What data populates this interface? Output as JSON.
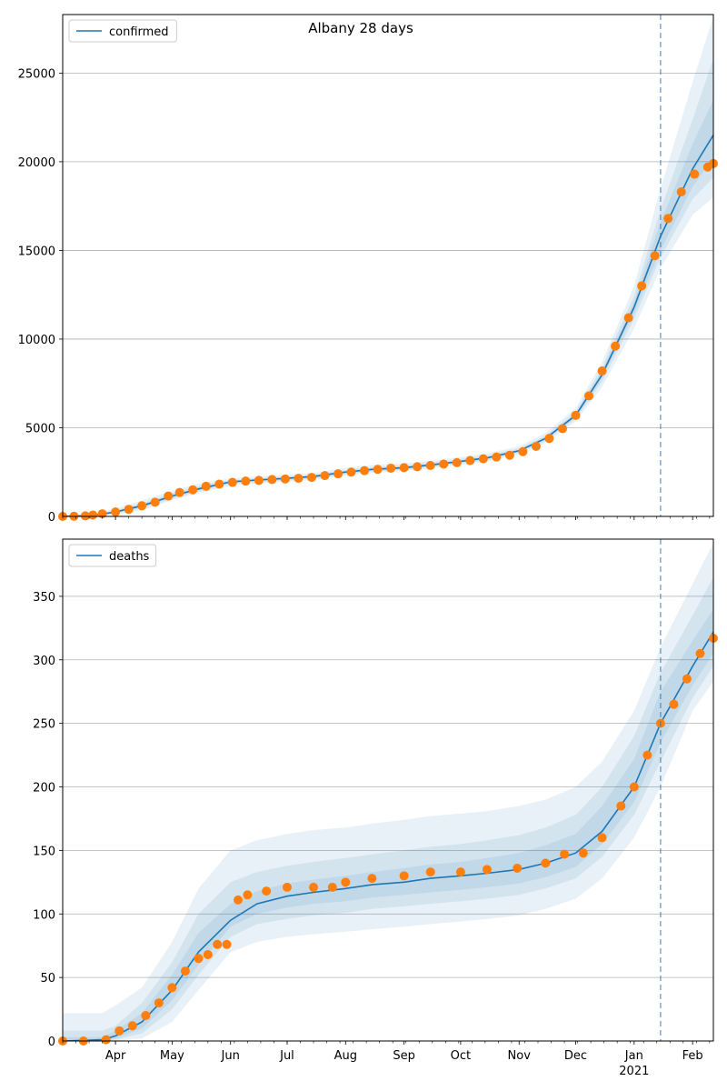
{
  "title": "Albany 28 days",
  "colors": {
    "model_line": "#1f77b4",
    "observed_points": "#ff7f0e",
    "band": "#1f77b4",
    "grid": "#b0b0b0",
    "vline": "#1f77b4"
  },
  "x_axis": {
    "month_labels": [
      {
        "label": "Apr",
        "date": "2020-04-01"
      },
      {
        "label": "May",
        "date": "2020-05-01"
      },
      {
        "label": "Jun",
        "date": "2020-06-01"
      },
      {
        "label": "Jul",
        "date": "2020-07-01"
      },
      {
        "label": "Aug",
        "date": "2020-08-01"
      },
      {
        "label": "Sep",
        "date": "2020-09-01"
      },
      {
        "label": "Oct",
        "date": "2020-10-01"
      },
      {
        "label": "Nov",
        "date": "2020-11-01"
      },
      {
        "label": "Dec",
        "date": "2020-12-01"
      },
      {
        "label": "Jan",
        "date": "2021-01-01"
      },
      {
        "label": "Feb",
        "date": "2021-02-01"
      }
    ],
    "year_label": "2021",
    "range": [
      "2020-03-04",
      "2021-02-12"
    ]
  },
  "chart_data": [
    {
      "type": "line",
      "legend": "confirmed",
      "legend_position": "upper-left",
      "grid": "horizontal",
      "ylim": [
        0,
        28300
      ],
      "yticks": [
        0,
        5000,
        10000,
        15000,
        20000,
        25000
      ],
      "forecast_start": "2021-01-15",
      "x_unit": "date",
      "model_curve": {
        "x": [
          "2020-03-04",
          "2020-03-20",
          "2020-04-01",
          "2020-04-15",
          "2020-05-01",
          "2020-05-15",
          "2020-06-01",
          "2020-06-15",
          "2020-07-01",
          "2020-07-15",
          "2020-08-01",
          "2020-08-15",
          "2020-09-01",
          "2020-09-15",
          "2020-10-01",
          "2020-10-15",
          "2020-11-01",
          "2020-11-15",
          "2020-12-01",
          "2020-12-15",
          "2021-01-01",
          "2021-01-15",
          "2021-02-01",
          "2021-02-12"
        ],
        "y": [
          0,
          50,
          250,
          600,
          1150,
          1550,
          1950,
          2050,
          2150,
          2250,
          2500,
          2650,
          2750,
          2900,
          3100,
          3300,
          3700,
          4400,
          5700,
          8000,
          11800,
          15800,
          19600,
          21500
        ]
      },
      "bands": [
        {
          "level": "outer",
          "upper": [
            50,
            150,
            450,
            900,
            1450,
            1850,
            2150,
            2250,
            2350,
            2450,
            2750,
            2900,
            3000,
            3150,
            3350,
            3550,
            3950,
            4700,
            6100,
            8700,
            13000,
            18500,
            24500,
            28200
          ],
          "lower": [
            0,
            0,
            100,
            350,
            900,
            1300,
            1750,
            1850,
            1950,
            2050,
            2300,
            2450,
            2550,
            2700,
            2900,
            3100,
            3500,
            4150,
            5350,
            7300,
            10600,
            14000,
            17000,
            18000
          ]
        },
        {
          "level": "middle",
          "upper": [
            30,
            100,
            350,
            750,
            1300,
            1700,
            2050,
            2150,
            2250,
            2350,
            2620,
            2780,
            2880,
            3030,
            3230,
            3430,
            3830,
            4560,
            5900,
            8400,
            12450,
            17300,
            22400,
            25800
          ],
          "lower": [
            0,
            20,
            170,
            450,
            1000,
            1400,
            1830,
            1930,
            2030,
            2130,
            2380,
            2530,
            2630,
            2780,
            2980,
            3180,
            3580,
            4250,
            5500,
            7600,
            11150,
            14600,
            17900,
            19100
          ]
        },
        {
          "level": "inner",
          "upper": [
            15,
            70,
            300,
            680,
            1230,
            1630,
            2000,
            2100,
            2200,
            2300,
            2560,
            2710,
            2810,
            2960,
            3160,
            3360,
            3760,
            4480,
            5800,
            8200,
            12100,
            16600,
            21000,
            23500
          ],
          "lower": [
            0,
            35,
            210,
            520,
            1070,
            1470,
            1890,
            1990,
            2090,
            2190,
            2440,
            2590,
            2690,
            2840,
            3040,
            3240,
            3640,
            4320,
            5600,
            7800,
            11500,
            15000,
            18600,
            20200
          ]
        }
      ],
      "observed": {
        "x": [
          "2020-03-04",
          "2020-03-10",
          "2020-03-16",
          "2020-03-20",
          "2020-03-25",
          "2020-04-01",
          "2020-04-08",
          "2020-04-15",
          "2020-04-22",
          "2020-04-29",
          "2020-05-05",
          "2020-05-12",
          "2020-05-19",
          "2020-05-26",
          "2020-06-02",
          "2020-06-09",
          "2020-06-16",
          "2020-06-23",
          "2020-06-30",
          "2020-07-07",
          "2020-07-14",
          "2020-07-21",
          "2020-07-28",
          "2020-08-04",
          "2020-08-11",
          "2020-08-18",
          "2020-08-25",
          "2020-09-01",
          "2020-09-08",
          "2020-09-15",
          "2020-09-22",
          "2020-09-29",
          "2020-10-06",
          "2020-10-13",
          "2020-10-20",
          "2020-10-27",
          "2020-11-03",
          "2020-11-10",
          "2020-11-17",
          "2020-11-24",
          "2020-12-01",
          "2020-12-08",
          "2020-12-15",
          "2020-12-22",
          "2020-12-29",
          "2021-01-05",
          "2021-01-12",
          "2021-01-19",
          "2021-01-26",
          "2021-02-02",
          "2021-02-09",
          "2021-02-12"
        ],
        "y": [
          0,
          10,
          30,
          80,
          150,
          250,
          400,
          600,
          800,
          1150,
          1350,
          1500,
          1700,
          1820,
          1920,
          1990,
          2030,
          2080,
          2110,
          2150,
          2200,
          2300,
          2400,
          2500,
          2580,
          2650,
          2720,
          2750,
          2800,
          2870,
          2950,
          3030,
          3150,
          3250,
          3350,
          3450,
          3650,
          3950,
          4400,
          4950,
          5700,
          6800,
          8200,
          9600,
          11200,
          13000,
          14700,
          16800,
          18300,
          19300,
          19700,
          19900
        ]
      }
    },
    {
      "type": "line",
      "legend": "deaths",
      "legend_position": "upper-left",
      "grid": "horizontal",
      "ylim": [
        0,
        395
      ],
      "yticks": [
        0,
        50,
        100,
        150,
        200,
        250,
        300,
        350
      ],
      "forecast_start": "2021-01-15",
      "x_unit": "date",
      "model_curve": {
        "x": [
          "2020-03-04",
          "2020-03-25",
          "2020-04-01",
          "2020-04-15",
          "2020-05-01",
          "2020-05-15",
          "2020-06-01",
          "2020-06-15",
          "2020-07-01",
          "2020-07-15",
          "2020-08-01",
          "2020-08-15",
          "2020-09-01",
          "2020-09-15",
          "2020-10-01",
          "2020-10-15",
          "2020-11-01",
          "2020-11-15",
          "2020-12-01",
          "2020-12-15",
          "2021-01-01",
          "2021-01-15",
          "2021-02-01",
          "2021-02-12"
        ],
        "y": [
          0,
          1,
          4,
          15,
          40,
          70,
          95,
          108,
          114,
          117,
          120,
          123,
          125,
          128,
          130,
          132,
          135,
          140,
          148,
          165,
          200,
          250,
          295,
          322
        ]
      },
      "bands": [
        {
          "level": "outer",
          "upper": [
            22,
            22,
            28,
            42,
            78,
            120,
            150,
            158,
            163,
            166,
            168,
            171,
            174,
            177,
            179,
            181,
            185,
            190,
            200,
            220,
            260,
            310,
            360,
            392
          ],
          "lower": [
            0,
            0,
            0,
            2,
            15,
            40,
            70,
            78,
            82,
            84,
            86,
            88,
            90,
            92,
            94,
            96,
            99,
            104,
            112,
            128,
            160,
            200,
            260,
            283
          ]
        },
        {
          "level": "middle",
          "upper": [
            8,
            8,
            12,
            30,
            62,
            100,
            125,
            133,
            138,
            141,
            144,
            147,
            150,
            153,
            155,
            158,
            162,
            168,
            178,
            200,
            240,
            290,
            335,
            365
          ],
          "lower": [
            0,
            0,
            1,
            6,
            25,
            52,
            82,
            92,
            96,
            99,
            101,
            104,
            106,
            108,
            110,
            112,
            115,
            120,
            128,
            145,
            178,
            220,
            270,
            295
          ]
        },
        {
          "level": "inner",
          "upper": [
            3,
            3,
            8,
            22,
            52,
            85,
            108,
            118,
            124,
            127,
            130,
            133,
            136,
            139,
            141,
            144,
            148,
            154,
            163,
            185,
            222,
            275,
            315,
            340
          ],
          "lower": [
            0,
            0,
            2,
            10,
            32,
            60,
            90,
            100,
            105,
            108,
            110,
            113,
            115,
            117,
            119,
            121,
            124,
            129,
            137,
            155,
            188,
            235,
            280,
            305
          ]
        }
      ],
      "observed": {
        "x": [
          "2020-03-04",
          "2020-03-15",
          "2020-03-27",
          "2020-04-03",
          "2020-04-10",
          "2020-04-17",
          "2020-04-24",
          "2020-05-01",
          "2020-05-08",
          "2020-05-15",
          "2020-05-20",
          "2020-05-25",
          "2020-05-30",
          "2020-06-05",
          "2020-06-10",
          "2020-06-20",
          "2020-07-01",
          "2020-07-15",
          "2020-07-25",
          "2020-08-01",
          "2020-08-15",
          "2020-09-01",
          "2020-09-15",
          "2020-10-01",
          "2020-10-15",
          "2020-10-31",
          "2020-11-15",
          "2020-11-25",
          "2020-12-05",
          "2020-12-15",
          "2020-12-25",
          "2021-01-01",
          "2021-01-08",
          "2021-01-15",
          "2021-01-22",
          "2021-01-29",
          "2021-02-05",
          "2021-02-12"
        ],
        "y": [
          0,
          0,
          1,
          8,
          12,
          20,
          30,
          42,
          55,
          65,
          68,
          76,
          76,
          111,
          115,
          118,
          121,
          121,
          121,
          125,
          128,
          130,
          133,
          133,
          135,
          136,
          140,
          147,
          148,
          160,
          185,
          200,
          225,
          250,
          265,
          285,
          305,
          317
        ]
      }
    }
  ]
}
